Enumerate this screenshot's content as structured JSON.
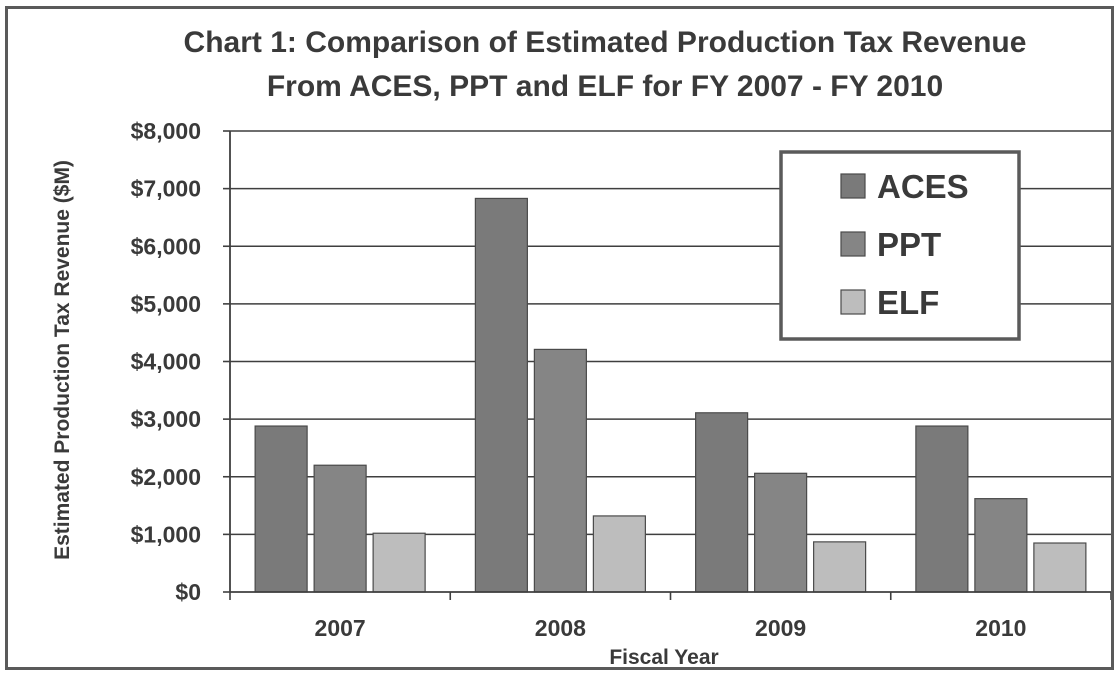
{
  "chart_data": {
    "type": "bar",
    "title_lines": [
      "Chart 1:  Comparison of Estimated Production Tax Revenue",
      "From ACES, PPT and ELF for FY 2007 - FY 2010"
    ],
    "xlabel": "Fiscal Year",
    "ylabel": "Estimated Production Tax Revenue ($M)",
    "categories": [
      "2007",
      "2008",
      "2009",
      "2010"
    ],
    "ylim": [
      0,
      8000
    ],
    "ytick_values": [
      0,
      1000,
      2000,
      3000,
      4000,
      5000,
      6000,
      7000,
      8000
    ],
    "ytick_labels": [
      "$0",
      "$1,000",
      "$2,000",
      "$3,000",
      "$4,000",
      "$5,000",
      "$6,000",
      "$7,000",
      "$8,000"
    ],
    "grid": true,
    "legend_position": "top-right",
    "series": [
      {
        "name": "ACES",
        "values": [
          2880,
          6830,
          3110,
          2880
        ],
        "color": "#7a7a7a"
      },
      {
        "name": "PPT",
        "values": [
          2200,
          4210,
          2060,
          1620
        ],
        "color": "#858585"
      },
      {
        "name": "ELF",
        "values": [
          1020,
          1320,
          870,
          850
        ],
        "color": "#bdbdbd"
      }
    ]
  }
}
